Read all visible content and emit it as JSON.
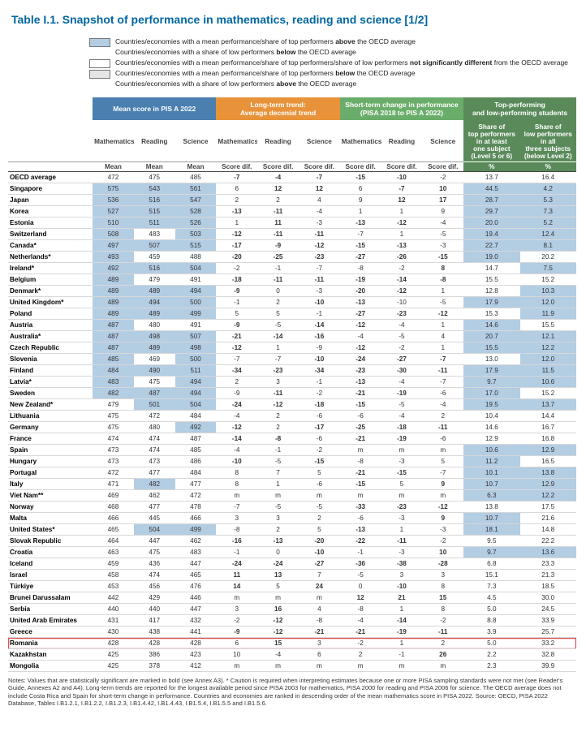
{
  "title": "Table I.1. Snapshot of performance in mathematics, reading and science [1/2]",
  "legend": [
    {
      "swatch": "#b3cde3",
      "text": "Countries/economies with a mean performance/share of top performers  above the OECD average\nCountries/economies with a share of low performers below the OECD average"
    },
    {
      "swatch": "#ffffff",
      "text": "Countries/economies with a mean performance/share of top performers/share of low performers  not significantly different from the OECD average"
    },
    {
      "swatch": "#e5e5e5",
      "text": "Countries/economies with a mean performance/share of top performers  below the OECD average\nCountries/economies with a share of low performers above the OECD average"
    }
  ],
  "group_headers": [
    {
      "label": "Mean score in PIS A 2022",
      "bg": "#4a7fb0",
      "span": 3
    },
    {
      "label": "Long-term trend:\nAverage decenial trend",
      "bg": "#e8933a",
      "span": 3
    },
    {
      "label": "Short-term change in performance\n(PISA 2018 to PIS A 2022)",
      "bg": "#6aad6a",
      "span": 3
    },
    {
      "label": "Top-performing\nand low-performing students",
      "bg": "#5a8a5a",
      "span": 2
    }
  ],
  "col_headers": [
    "Mathematics",
    "Reading",
    "Science",
    "Mathematics",
    "Reading",
    "Science",
    "Mathematics",
    "Reading",
    "Science",
    "Share of\ntop performers\nin at least\none subject\n(Level 5 or 6)",
    "Share of\nlow performers\nin all\nthree subjects\n(below Level 2)"
  ],
  "col_sub": [
    "Mean",
    "Mean",
    "Mean",
    "Score dif.",
    "Score dif.",
    "Score dif.",
    "Score dif.",
    "Score dif.",
    "Score dif.",
    "%",
    "%"
  ],
  "rows": [
    {
      "c": "OECD average",
      "v": [
        "472",
        "475",
        "485",
        "-7",
        "-4",
        "-7",
        "-15",
        "-10",
        "-2",
        "13.7",
        "16.4"
      ],
      "hl": [],
      "b": [
        3,
        4,
        5,
        6,
        7
      ]
    },
    {
      "c": "Singapore",
      "v": [
        "575",
        "543",
        "561",
        "6",
        "12",
        "12",
        "6",
        "-7",
        "10",
        "44.5",
        "4.2"
      ],
      "hl": [
        0,
        1,
        2,
        9,
        10
      ],
      "b": [
        4,
        5,
        7,
        8
      ]
    },
    {
      "c": "Japan",
      "v": [
        "536",
        "516",
        "547",
        "2",
        "2",
        "4",
        "9",
        "12",
        "17",
        "28.7",
        "5.3"
      ],
      "hl": [
        0,
        1,
        2,
        9,
        10
      ],
      "b": [
        7,
        8
      ]
    },
    {
      "c": "Korea",
      "v": [
        "527",
        "515",
        "528",
        "-13",
        "-11",
        "-4",
        "1",
        "1",
        "9",
        "29.7",
        "7.3"
      ],
      "hl": [
        0,
        1,
        2,
        9,
        10
      ],
      "b": [
        3,
        4
      ]
    },
    {
      "c": "Estonia",
      "v": [
        "510",
        "511",
        "526",
        "1",
        "11",
        "-3",
        "-13",
        "-12",
        "-4",
        "20.0",
        "5.2"
      ],
      "hl": [
        0,
        1,
        2,
        9,
        10
      ],
      "b": [
        4,
        6,
        7
      ]
    },
    {
      "c": "Switzerland",
      "v": [
        "508",
        "483",
        "503",
        "-12",
        "-11",
        "-11",
        "-7",
        "1",
        "-5",
        "19.4",
        "12.4"
      ],
      "hl": [
        0,
        2,
        9,
        10
      ],
      "b": [
        3,
        4,
        5
      ]
    },
    {
      "c": "Canada*",
      "v": [
        "497",
        "507",
        "515",
        "-17",
        "-9",
        "-12",
        "-15",
        "-13",
        "-3",
        "22.7",
        "8.1"
      ],
      "hl": [
        0,
        1,
        2,
        9,
        10
      ],
      "b": [
        3,
        4,
        5,
        6,
        7
      ]
    },
    {
      "c": "Netherlands*",
      "v": [
        "493",
        "459",
        "488",
        "-20",
        "-25",
        "-23",
        "-27",
        "-26",
        "-15",
        "19.0",
        "20.2"
      ],
      "hl": [
        0,
        9
      ],
      "b": [
        3,
        4,
        5,
        6,
        7,
        8
      ]
    },
    {
      "c": "Ireland*",
      "v": [
        "492",
        "516",
        "504",
        "-2",
        "-1",
        "-7",
        "-8",
        "-2",
        "8",
        "14.7",
        "7.5"
      ],
      "hl": [
        0,
        1,
        2,
        10
      ],
      "b": [
        8
      ]
    },
    {
      "c": "Belgium",
      "v": [
        "489",
        "479",
        "491",
        "-18",
        "-11",
        "-11",
        "-19",
        "-14",
        "-8",
        "15.5",
        "15.2"
      ],
      "hl": [
        0
      ],
      "b": [
        3,
        4,
        5,
        6,
        7,
        8
      ]
    },
    {
      "c": "Denmark*",
      "v": [
        "489",
        "489",
        "494",
        "-9",
        "0",
        "-3",
        "-20",
        "-12",
        "1",
        "12.8",
        "10.3"
      ],
      "hl": [
        0,
        1,
        2,
        10
      ],
      "b": [
        3,
        6,
        7
      ]
    },
    {
      "c": "United Kingdom*",
      "v": [
        "489",
        "494",
        "500",
        "-1",
        "2",
        "-10",
        "-13",
        "-10",
        "-5",
        "17.9",
        "12.0"
      ],
      "hl": [
        0,
        1,
        2,
        9,
        10
      ],
      "b": [
        5,
        6
      ]
    },
    {
      "c": "Poland",
      "v": [
        "489",
        "489",
        "499",
        "5",
        "5",
        "-1",
        "-27",
        "-23",
        "-12",
        "15.3",
        "11.9"
      ],
      "hl": [
        0,
        1,
        2,
        10
      ],
      "b": [
        6,
        7,
        8
      ]
    },
    {
      "c": "Austria",
      "v": [
        "487",
        "480",
        "491",
        "-9",
        "-5",
        "-14",
        "-12",
        "-4",
        "1",
        "14.6",
        "15.5"
      ],
      "hl": [
        0,
        9
      ],
      "b": [
        3,
        5,
        6
      ]
    },
    {
      "c": "Australia*",
      "v": [
        "487",
        "498",
        "507",
        "-21",
        "-14",
        "-16",
        "-4",
        "-5",
        "4",
        "20.7",
        "12.1"
      ],
      "hl": [
        0,
        1,
        2,
        9,
        10
      ],
      "b": [
        3,
        4,
        5
      ]
    },
    {
      "c": "Czech Republic",
      "v": [
        "487",
        "489",
        "498",
        "-12",
        "1",
        "-9",
        "-12",
        "-2",
        "1",
        "15.5",
        "12.2"
      ],
      "hl": [
        0,
        1,
        2,
        9,
        10
      ],
      "b": [
        3,
        6
      ]
    },
    {
      "c": "Slovenia",
      "v": [
        "485",
        "469",
        "500",
        "-7",
        "-7",
        "-10",
        "-24",
        "-27",
        "-7",
        "13.0",
        "12.0"
      ],
      "hl": [
        0,
        2,
        10
      ],
      "b": [
        5,
        6,
        7,
        8
      ]
    },
    {
      "c": "Finland",
      "v": [
        "484",
        "490",
        "511",
        "-34",
        "-23",
        "-34",
        "-23",
        "-30",
        "-11",
        "17.9",
        "11.5"
      ],
      "hl": [
        0,
        1,
        2,
        9,
        10
      ],
      "b": [
        3,
        4,
        5,
        6,
        7,
        8
      ]
    },
    {
      "c": "Latvia*",
      "v": [
        "483",
        "475",
        "494",
        "2",
        "3",
        "-1",
        "-13",
        "-4",
        "-7",
        "9.7",
        "10.6"
      ],
      "hl": [
        0,
        2,
        9,
        10
      ],
      "b": [
        6
      ]
    },
    {
      "c": "Sweden",
      "v": [
        "482",
        "487",
        "494",
        "-9",
        "-11",
        "-2",
        "-21",
        "-19",
        "-6",
        "17.0",
        "15.2"
      ],
      "hl": [
        0,
        1,
        2,
        9
      ],
      "b": [
        4,
        6,
        7
      ]
    },
    {
      "c": "New Zealand*",
      "v": [
        "479",
        "501",
        "504",
        "-24",
        "-12",
        "-18",
        "-15",
        "-5",
        "-4",
        "19.5",
        "13.7"
      ],
      "hl": [
        1,
        2,
        9,
        10
      ],
      "b": [
        3,
        4,
        5,
        6
      ]
    },
    {
      "c": "Lithuania",
      "v": [
        "475",
        "472",
        "484",
        "-4",
        "2",
        "-6",
        "-6",
        "-4",
        "2",
        "10.4",
        "14.4"
      ],
      "hl": [],
      "b": []
    },
    {
      "c": "Germany",
      "v": [
        "475",
        "480",
        "492",
        "-12",
        "2",
        "-17",
        "-25",
        "-18",
        "-11",
        "14.6",
        "16.7"
      ],
      "hl": [
        2
      ],
      "b": [
        3,
        5,
        6,
        7,
        8
      ]
    },
    {
      "c": "France",
      "v": [
        "474",
        "474",
        "487",
        "-14",
        "-8",
        "-6",
        "-21",
        "-19",
        "-6",
        "12.9",
        "16.8"
      ],
      "hl": [],
      "b": [
        3,
        4,
        6,
        7
      ]
    },
    {
      "c": "Spain",
      "v": [
        "473",
        "474",
        "485",
        "-4",
        "-1",
        "-2",
        "m",
        "m",
        "m",
        "10.6",
        "12.9"
      ],
      "hl": [
        9,
        10
      ],
      "b": []
    },
    {
      "c": "Hungary",
      "v": [
        "473",
        "473",
        "486",
        "-10",
        "-5",
        "-15",
        "-8",
        "-3",
        "5",
        "11.2",
        "16.5"
      ],
      "hl": [
        9
      ],
      "b": [
        3,
        5
      ]
    },
    {
      "c": "Portugal",
      "v": [
        "472",
        "477",
        "484",
        "8",
        "7",
        "5",
        "-21",
        "-15",
        "-7",
        "10.1",
        "13.8"
      ],
      "hl": [
        9,
        10
      ],
      "b": [
        6,
        7
      ]
    },
    {
      "c": "Italy",
      "v": [
        "471",
        "482",
        "477",
        "8",
        "1",
        "-6",
        "-15",
        "5",
        "9",
        "10.7",
        "12.9"
      ],
      "hl": [
        1,
        9,
        10
      ],
      "b": [
        6,
        8
      ]
    },
    {
      "c": "Viet Nam**",
      "v": [
        "469",
        "462",
        "472",
        "m",
        "m",
        "m",
        "m",
        "m",
        "m",
        "6.3",
        "12.2"
      ],
      "hl": [
        9,
        10
      ],
      "b": []
    },
    {
      "c": "Norway",
      "v": [
        "468",
        "477",
        "478",
        "-7",
        "-5",
        "-5",
        "-33",
        "-23",
        "-12",
        "13.8",
        "17.5"
      ],
      "hl": [],
      "b": [
        6,
        7,
        8
      ]
    },
    {
      "c": "Malta",
      "v": [
        "466",
        "445",
        "466",
        "3",
        "3",
        "2",
        "-6",
        "-3",
        "9",
        "10.7",
        "21.6"
      ],
      "hl": [
        9
      ],
      "b": [
        8
      ]
    },
    {
      "c": "United States*",
      "v": [
        "465",
        "504",
        "499",
        "-8",
        "2",
        "5",
        "-13",
        "1",
        "-3",
        "18.1",
        "14.8"
      ],
      "hl": [
        1,
        2,
        9
      ],
      "b": [
        6
      ]
    },
    {
      "c": "Slovak Republic",
      "v": [
        "464",
        "447",
        "462",
        "-16",
        "-13",
        "-20",
        "-22",
        "-11",
        "-2",
        "9.5",
        "22.2"
      ],
      "hl": [],
      "b": [
        3,
        4,
        5,
        6,
        7
      ]
    },
    {
      "c": "Croatia",
      "v": [
        "463",
        "475",
        "483",
        "-1",
        "0",
        "-10",
        "-1",
        "-3",
        "10",
        "9.7",
        "13.6"
      ],
      "hl": [
        9,
        10
      ],
      "b": [
        5,
        8
      ]
    },
    {
      "c": "Iceland",
      "v": [
        "459",
        "436",
        "447",
        "-24",
        "-24",
        "-27",
        "-36",
        "-38",
        "-28",
        "6.8",
        "23.3"
      ],
      "hl": [],
      "b": [
        3,
        4,
        5,
        6,
        7,
        8
      ]
    },
    {
      "c": "Israel",
      "v": [
        "458",
        "474",
        "465",
        "11",
        "13",
        "7",
        "-5",
        "3",
        "3",
        "15.1",
        "21.3"
      ],
      "hl": [],
      "b": [
        3,
        4
      ]
    },
    {
      "c": "Türkiye",
      "v": [
        "453",
        "456",
        "476",
        "14",
        "5",
        "24",
        "0",
        "-10",
        "8",
        "7.3",
        "18.5"
      ],
      "hl": [],
      "b": [
        3,
        5,
        7
      ]
    },
    {
      "c": "Brunei Darussalam",
      "v": [
        "442",
        "429",
        "446",
        "m",
        "m",
        "m",
        "12",
        "21",
        "15",
        "4.5",
        "30.0"
      ],
      "hl": [],
      "b": [
        6,
        7,
        8
      ]
    },
    {
      "c": "Serbia",
      "v": [
        "440",
        "440",
        "447",
        "3",
        "16",
        "4",
        "-8",
        "1",
        "8",
        "5.0",
        "24.5"
      ],
      "hl": [],
      "b": [
        4
      ]
    },
    {
      "c": "United Arab Emirates",
      "v": [
        "431",
        "417",
        "432",
        "-2",
        "-12",
        "-8",
        "-4",
        "-14",
        "-2",
        "8.8",
        "33.9"
      ],
      "hl": [],
      "b": [
        4,
        7
      ]
    },
    {
      "c": "Greece",
      "v": [
        "430",
        "438",
        "441",
        "-9",
        "-12",
        "-21",
        "-21",
        "-19",
        "-11",
        "3.9",
        "25.7"
      ],
      "hl": [],
      "b": [
        3,
        4,
        5,
        6,
        7,
        8
      ]
    },
    {
      "c": "Romania",
      "v": [
        "428",
        "428",
        "428",
        "6",
        "15",
        "3",
        "-2",
        "1",
        "2",
        "5.0",
        "33.2"
      ],
      "hl": [],
      "b": [
        4
      ],
      "rowhl": true
    },
    {
      "c": "Kazakhstan",
      "v": [
        "425",
        "386",
        "423",
        "10",
        "-4",
        "6",
        "2",
        "-1",
        "26",
        "2.2",
        "32.8"
      ],
      "hl": [],
      "b": [
        8
      ]
    },
    {
      "c": "Mongolia",
      "v": [
        "425",
        "378",
        "412",
        "m",
        "m",
        "m",
        "m",
        "m",
        "m",
        "2.3",
        "39.9"
      ],
      "hl": [],
      "b": []
    }
  ],
  "notes": "Notes: Values that are statistically significant are marked in bold (see Annex A3). * Caution is required when interpreting estimates because one or more PISA sampling standards were not met (see Reader's Guide, Annexes A2 and A4). Long-term trends are reported for the longest available period since PISA 2003 for mathematics, PISA 2000 for reading and PISA 2006 for science. The OECD average does not include Costa Rica and Spain for short-term change in performance. Countries and economies are ranked in descending order of the mean mathematics score in PISA 2022. Source: OECD, PISA 2022 Database, Tables I.B1.2.1, I.B1.2.2, I.B1.2.3, I.B1.4.42, I.B1.4.43, I.B1.5.4, I.B1.5.5 and I.B1.5.6."
}
